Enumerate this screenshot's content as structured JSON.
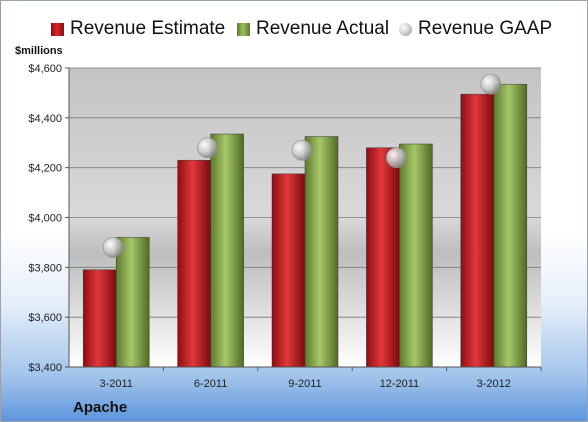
{
  "company": "Apache",
  "legend": [
    {
      "label": "Revenue Estimate",
      "color": "#c8171d",
      "kind": "bar"
    },
    {
      "label": "Revenue Actual",
      "color": "#86a84a",
      "kind": "bar"
    },
    {
      "label": "Revenue GAAP",
      "color": "#c0c0c0",
      "kind": "marker"
    }
  ],
  "chart_data": {
    "type": "bar",
    "ylabel": "$millions",
    "ylim": [
      3400,
      4600
    ],
    "yticks": [
      3400,
      3600,
      3800,
      4000,
      4200,
      4400,
      4600
    ],
    "ytick_labels": [
      "$3,400",
      "$3,600",
      "$3,800",
      "$4,000",
      "$4,200",
      "$4,400",
      "$4,600"
    ],
    "categories": [
      "3-2011",
      "6-2011",
      "9-2011",
      "12-2011",
      "3-2012"
    ],
    "series": [
      {
        "name": "Revenue Estimate",
        "type": "bar",
        "color": "#c8171d",
        "values": [
          3790,
          4230,
          4175,
          4280,
          4495
        ]
      },
      {
        "name": "Revenue Actual",
        "type": "bar",
        "color": "#86a84a",
        "values": [
          3920,
          4335,
          4325,
          4295,
          4535
        ]
      },
      {
        "name": "Revenue GAAP",
        "type": "marker",
        "color": "#c0c0c0",
        "values": [
          3880,
          4280,
          4270,
          4240,
          4535
        ]
      }
    ],
    "grid": true,
    "legend_position": "top"
  }
}
